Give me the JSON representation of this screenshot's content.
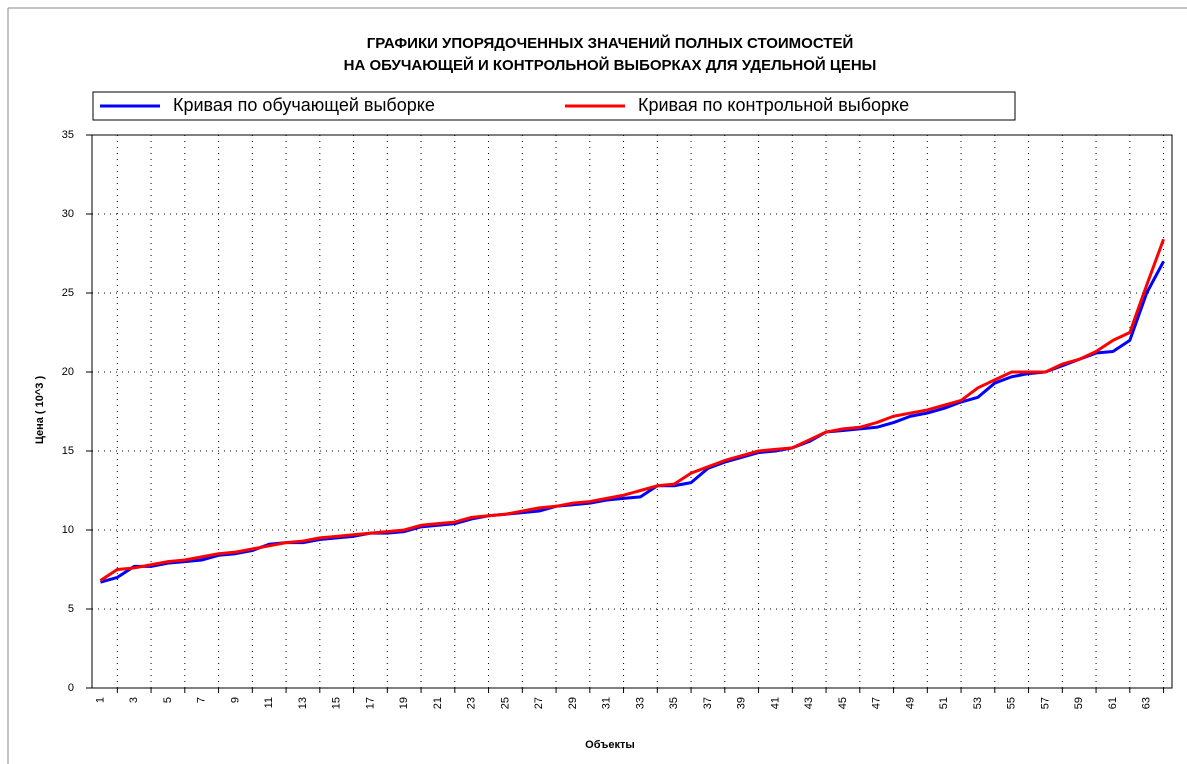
{
  "chart_data": {
    "type": "line",
    "title": [
      "ГРАФИКИ УПОРЯДОЧЕННЫХ ЗНАЧЕНИЙ ПОЛНЫХ СТОИМОСТЕЙ",
      "НА ОБУЧАЮЩЕЙ И КОНТРОЛЬНОЙ ВЫБОРКАХ ДЛЯ УДЕЛЬНОЙ ЦЕНЫ"
    ],
    "x_label": "Объекты",
    "y_label": "Цена ( 10^3 )",
    "x": [
      1,
      2,
      3,
      4,
      5,
      6,
      7,
      8,
      9,
      10,
      11,
      12,
      13,
      14,
      15,
      16,
      17,
      18,
      19,
      20,
      21,
      22,
      23,
      24,
      25,
      26,
      27,
      28,
      29,
      30,
      31,
      32,
      33,
      34,
      35,
      36,
      37,
      38,
      39,
      40,
      41,
      42,
      43,
      44,
      45,
      46,
      47,
      48,
      49,
      50,
      51,
      52,
      53,
      54,
      55,
      56,
      57,
      58,
      59,
      60,
      61,
      62,
      63,
      64
    ],
    "series": [
      {
        "name": "Кривая по обучающей выборке",
        "color": "#0000ff",
        "values": [
          6.7,
          7.0,
          7.7,
          7.7,
          7.9,
          8.0,
          8.1,
          8.4,
          8.5,
          8.7,
          9.1,
          9.2,
          9.2,
          9.4,
          9.5,
          9.6,
          9.8,
          9.8,
          9.9,
          10.2,
          10.3,
          10.4,
          10.7,
          10.9,
          11.0,
          11.1,
          11.2,
          11.5,
          11.6,
          11.7,
          11.9,
          12.0,
          12.1,
          12.8,
          12.8,
          13.0,
          13.9,
          14.3,
          14.6,
          14.9,
          15.0,
          15.2,
          15.6,
          16.2,
          16.3,
          16.4,
          16.5,
          16.8,
          17.2,
          17.4,
          17.7,
          18.1,
          18.4,
          19.3,
          19.7,
          19.9,
          20.0,
          20.4,
          20.8,
          21.2,
          21.3,
          22.0,
          25.0,
          27.0
        ]
      },
      {
        "name": "Кривая по контрольной выборке",
        "color": "#ff0000",
        "values": [
          6.8,
          7.5,
          7.6,
          7.8,
          8.0,
          8.1,
          8.3,
          8.5,
          8.6,
          8.8,
          9.0,
          9.2,
          9.3,
          9.5,
          9.6,
          9.7,
          9.8,
          9.9,
          10.0,
          10.3,
          10.4,
          10.5,
          10.8,
          10.9,
          11.0,
          11.2,
          11.4,
          11.5,
          11.7,
          11.8,
          12.0,
          12.2,
          12.5,
          12.8,
          12.9,
          13.6,
          14.0,
          14.4,
          14.7,
          15.0,
          15.1,
          15.2,
          15.7,
          16.2,
          16.4,
          16.5,
          16.8,
          17.2,
          17.4,
          17.6,
          17.9,
          18.2,
          19.0,
          19.5,
          20.0,
          20.0,
          20.0,
          20.5,
          20.8,
          21.3,
          22.0,
          22.5,
          25.5,
          28.4
        ]
      }
    ],
    "xlim": [
      0.5,
      64.5
    ],
    "xticks": [
      1,
      3,
      5,
      7,
      9,
      11,
      13,
      15,
      17,
      19,
      21,
      23,
      25,
      27,
      29,
      31,
      33,
      35,
      37,
      39,
      41,
      43,
      45,
      47,
      49,
      51,
      53,
      55,
      57,
      59,
      61,
      63
    ],
    "xgrid": [
      2,
      4,
      6,
      8,
      10,
      12,
      14,
      16,
      18,
      20,
      22,
      24,
      26,
      28,
      30,
      32,
      34,
      36,
      38,
      40,
      42,
      44,
      46,
      48,
      50,
      52,
      54,
      56,
      58,
      60,
      62,
      64
    ],
    "ylim": [
      0,
      35
    ],
    "yticks": [
      0,
      5,
      10,
      15,
      20,
      25,
      30,
      35
    ],
    "grid": true,
    "legend": "top"
  }
}
